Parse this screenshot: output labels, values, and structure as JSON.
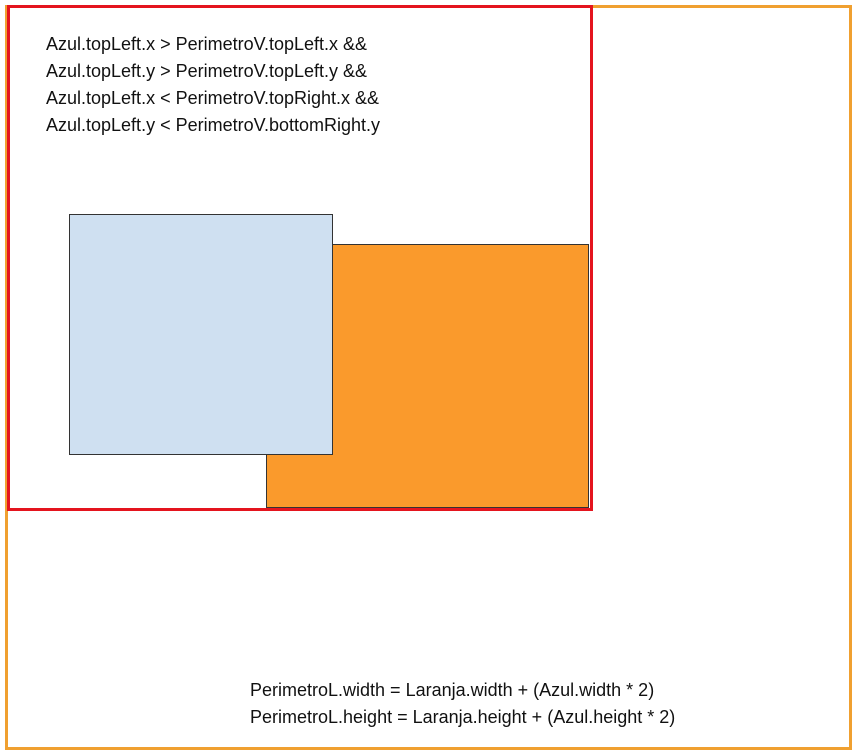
{
  "conditions": [
    "Azul.topLeft.x > PerimetroV.topLeft.x &&",
    "Azul.topLeft.y > PerimetroV.topLeft.y &&",
    "Azul.topLeft.x < PerimetroV.topRight.x &&",
    "Azul.topLeft.y < PerimetroV.bottomRight.y"
  ],
  "formulas": [
    "PerimetroL.width = Laranja.width + (Azul.width * 2)",
    "PerimetroL.height = Laranja.height + (Azul.height * 2)"
  ],
  "colors": {
    "perimetro_l_border": "#f0a030",
    "perimetro_v_border": "#e4141e",
    "laranja_fill": "#fa9a2c",
    "azul_fill": "#cfe0f1"
  }
}
